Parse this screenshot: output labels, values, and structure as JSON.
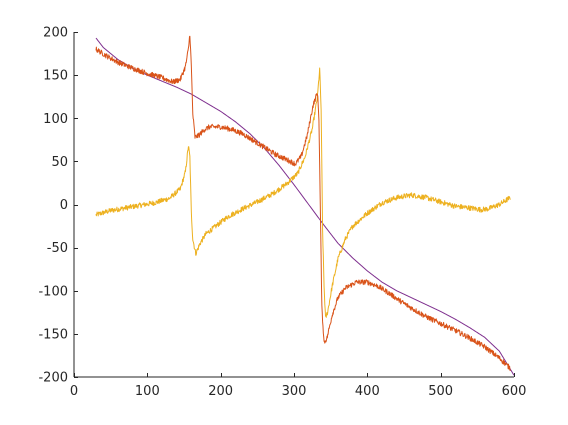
{
  "chart_data": {
    "type": "line",
    "title": "",
    "xlabel": "",
    "ylabel": "",
    "xlim": [
      0,
      600
    ],
    "ylim": [
      -200,
      200
    ],
    "x_ticks": [
      0,
      100,
      200,
      300,
      400,
      500,
      600
    ],
    "y_ticks": [
      -200,
      -150,
      -100,
      -50,
      0,
      50,
      100,
      150,
      200
    ],
    "x_tick_labels": [
      "0",
      "100",
      "200",
      "300",
      "400",
      "500",
      "600"
    ],
    "y_tick_labels": [
      "-200",
      "-150",
      "-100",
      "-50",
      "0",
      "50",
      "100",
      "150",
      "200"
    ],
    "grid": false,
    "legend": "none",
    "series": [
      {
        "color": "#7e2f8e",
        "noise": 0,
        "points": [
          [
            30,
            193
          ],
          [
            40,
            182
          ],
          [
            60,
            168
          ],
          [
            80,
            158
          ],
          [
            100,
            150
          ],
          [
            120,
            143
          ],
          [
            140,
            136
          ],
          [
            160,
            128
          ],
          [
            180,
            118
          ],
          [
            200,
            108
          ],
          [
            220,
            96
          ],
          [
            240,
            82
          ],
          [
            260,
            65
          ],
          [
            280,
            45
          ],
          [
            300,
            23
          ],
          [
            320,
            0
          ],
          [
            340,
            -23
          ],
          [
            360,
            -45
          ],
          [
            380,
            -62
          ],
          [
            400,
            -77
          ],
          [
            420,
            -90
          ],
          [
            440,
            -100
          ],
          [
            460,
            -108
          ],
          [
            480,
            -116
          ],
          [
            500,
            -124
          ],
          [
            520,
            -133
          ],
          [
            540,
            -143
          ],
          [
            560,
            -154
          ],
          [
            580,
            -170
          ],
          [
            600,
            -198
          ]
        ]
      },
      {
        "color": "#edb120",
        "noise": 3,
        "points": [
          [
            30,
            -12
          ],
          [
            50,
            -7
          ],
          [
            70,
            -4
          ],
          [
            90,
            -1
          ],
          [
            110,
            2
          ],
          [
            130,
            7
          ],
          [
            145,
            18
          ],
          [
            152,
            38
          ],
          [
            156,
            68
          ],
          [
            158,
            55
          ],
          [
            160,
            -10
          ],
          [
            162,
            -40
          ],
          [
            166,
            -57
          ],
          [
            172,
            -45
          ],
          [
            180,
            -34
          ],
          [
            195,
            -24
          ],
          [
            210,
            -14
          ],
          [
            230,
            -5
          ],
          [
            250,
            3
          ],
          [
            270,
            12
          ],
          [
            290,
            24
          ],
          [
            305,
            36
          ],
          [
            315,
            55
          ],
          [
            325,
            88
          ],
          [
            332,
            125
          ],
          [
            335,
            157
          ],
          [
            337,
            110
          ],
          [
            339,
            -30
          ],
          [
            341,
            -95
          ],
          [
            343,
            -132
          ],
          [
            346,
            -124
          ],
          [
            352,
            -95
          ],
          [
            360,
            -63
          ],
          [
            370,
            -40
          ],
          [
            380,
            -25
          ],
          [
            400,
            -10
          ],
          [
            420,
            2
          ],
          [
            440,
            8
          ],
          [
            460,
            11
          ],
          [
            480,
            8
          ],
          [
            500,
            3
          ],
          [
            520,
            -2
          ],
          [
            540,
            -4
          ],
          [
            555,
            -6
          ],
          [
            565,
            -5
          ],
          [
            580,
            0
          ],
          [
            595,
            8
          ]
        ]
      },
      {
        "color": "#d95319",
        "noise": 3,
        "points": [
          [
            30,
            180
          ],
          [
            45,
            172
          ],
          [
            60,
            165
          ],
          [
            80,
            158
          ],
          [
            100,
            152
          ],
          [
            120,
            147
          ],
          [
            135,
            142
          ],
          [
            145,
            145
          ],
          [
            152,
            160
          ],
          [
            156,
            180
          ],
          [
            158,
            198
          ],
          [
            160,
            160
          ],
          [
            162,
            105
          ],
          [
            165,
            78
          ],
          [
            170,
            80
          ],
          [
            178,
            87
          ],
          [
            185,
            90
          ],
          [
            200,
            90
          ],
          [
            215,
            87
          ],
          [
            230,
            82
          ],
          [
            245,
            74
          ],
          [
            260,
            66
          ],
          [
            275,
            58
          ],
          [
            290,
            52
          ],
          [
            302,
            47
          ],
          [
            310,
            56
          ],
          [
            318,
            80
          ],
          [
            326,
            115
          ],
          [
            332,
            130
          ],
          [
            334,
            100
          ],
          [
            336,
            -10
          ],
          [
            338,
            -120
          ],
          [
            341,
            -160
          ],
          [
            345,
            -155
          ],
          [
            352,
            -128
          ],
          [
            360,
            -108
          ],
          [
            370,
            -97
          ],
          [
            385,
            -90
          ],
          [
            400,
            -90
          ],
          [
            415,
            -95
          ],
          [
            430,
            -103
          ],
          [
            445,
            -112
          ],
          [
            460,
            -120
          ],
          [
            480,
            -130
          ],
          [
            500,
            -138
          ],
          [
            520,
            -146
          ],
          [
            540,
            -155
          ],
          [
            560,
            -165
          ],
          [
            580,
            -178
          ],
          [
            595,
            -190
          ]
        ]
      }
    ]
  }
}
